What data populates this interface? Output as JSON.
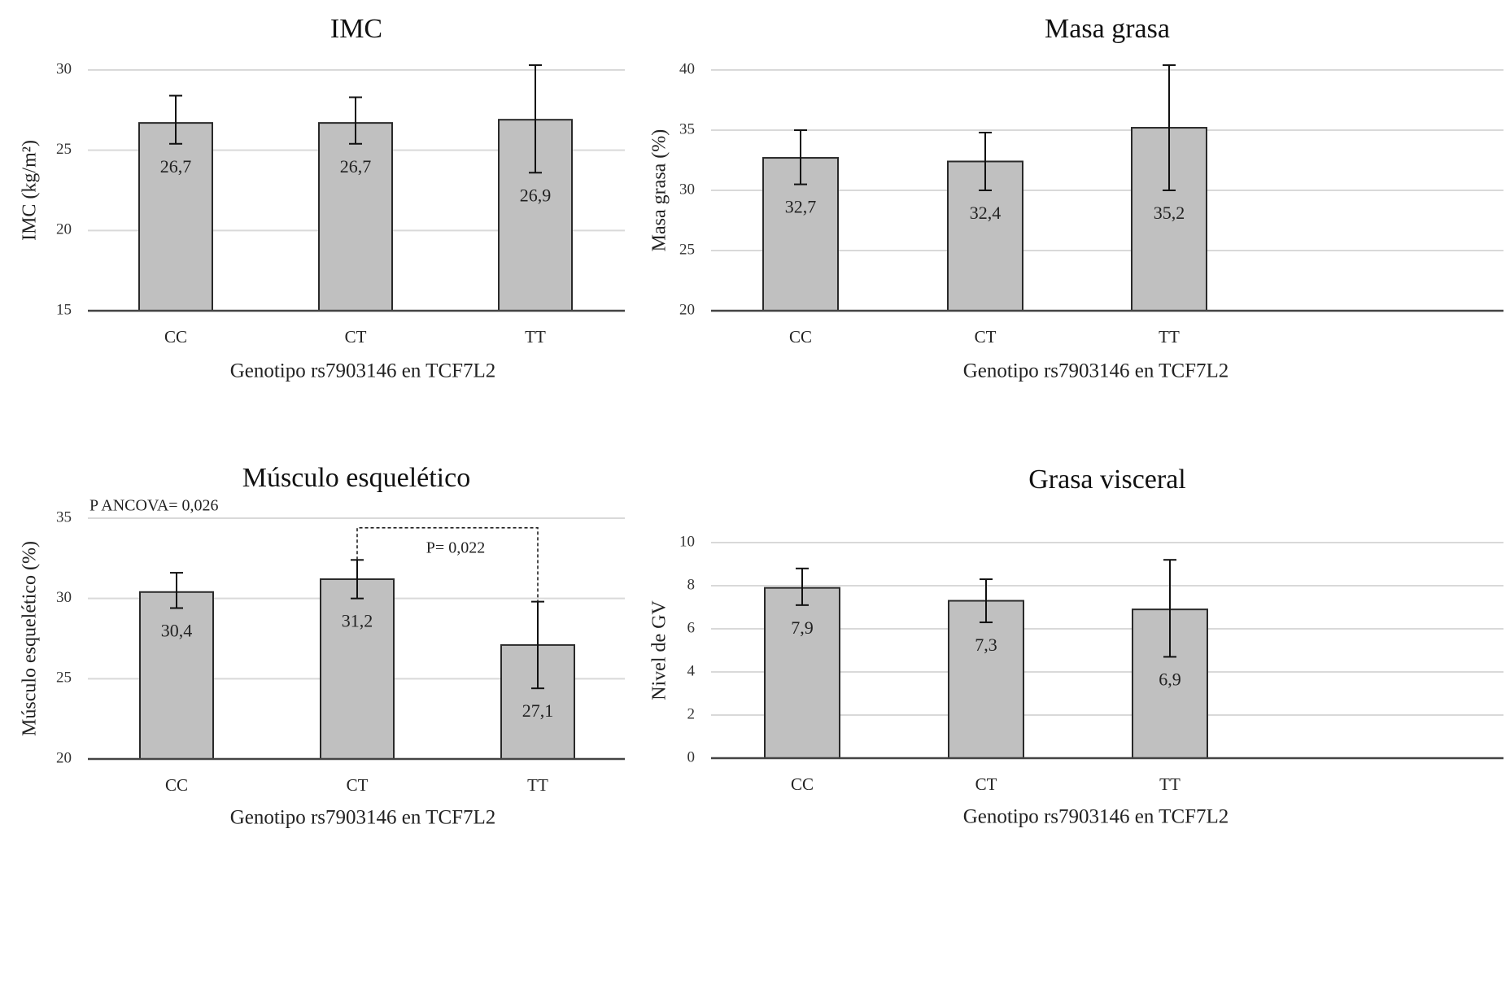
{
  "chart_data": [
    {
      "type": "bar",
      "title": "IMC",
      "xlabel": "Genotipo rs7903146 en TCF7L2",
      "ylabel": "IMC  (kg/m²)",
      "categories": [
        "CC",
        "CT",
        "TT"
      ],
      "values": [
        26.7,
        26.7,
        26.9
      ],
      "value_labels": [
        "26,7",
        "26,7",
        "26,9"
      ],
      "error_low": [
        25.4,
        25.4,
        23.6
      ],
      "error_high": [
        28.4,
        28.3,
        30.3
      ],
      "ylim": [
        15,
        30
      ],
      "yticks": [
        15,
        20,
        25,
        30
      ],
      "grid": true,
      "annotations": []
    },
    {
      "type": "bar",
      "title": "Masa grasa",
      "xlabel": "Genotipo rs7903146 en TCF7L2",
      "ylabel": "Masa grasa (%)",
      "categories": [
        "CC",
        "CT",
        "TT"
      ],
      "values": [
        32.7,
        32.4,
        35.2
      ],
      "value_labels": [
        "32,7",
        "32,4",
        "35,2"
      ],
      "error_low": [
        30.5,
        30.0,
        30.0
      ],
      "error_high": [
        35.0,
        34.8,
        40.4
      ],
      "ylim": [
        20,
        40
      ],
      "yticks": [
        20,
        25,
        30,
        35,
        40
      ],
      "grid": true,
      "annotations": []
    },
    {
      "type": "bar",
      "title": "Músculo esquelético",
      "xlabel": "Genotipo rs7903146 en TCF7L2",
      "ylabel": "Músculo esquelético (%)",
      "categories": [
        "CC",
        "CT",
        "TT"
      ],
      "values": [
        30.4,
        31.2,
        27.1
      ],
      "value_labels": [
        "30,4",
        "31,2",
        "27,1"
      ],
      "error_low": [
        29.4,
        30.0,
        24.4
      ],
      "error_high": [
        31.6,
        32.4,
        29.8
      ],
      "ylim": [
        20,
        35
      ],
      "yticks": [
        20,
        25,
        30,
        35
      ],
      "grid": true,
      "annotations": [
        {
          "text": "P ANCOVA= 0,026",
          "kind": "overall"
        },
        {
          "text": "P= 0,022",
          "kind": "bracket",
          "from": "CT",
          "to": "TT",
          "level": 34.4
        }
      ]
    },
    {
      "type": "bar",
      "title": "Grasa visceral",
      "xlabel": "Genotipo rs7903146 en TCF7L2",
      "ylabel": "Nivel de GV",
      "categories": [
        "CC",
        "CT",
        "TT"
      ],
      "values": [
        7.9,
        7.3,
        6.9
      ],
      "value_labels": [
        "7,9",
        "7,3",
        "6,9"
      ],
      "error_low": [
        7.1,
        6.3,
        4.7
      ],
      "error_high": [
        8.8,
        8.3,
        9.2
      ],
      "ylim": [
        0,
        10
      ],
      "yticks": [
        0,
        2,
        4,
        6,
        8,
        10
      ],
      "grid": true,
      "annotations": []
    }
  ],
  "colors": {
    "bar_fill": "#c0c0c0",
    "bar_stroke": "#2a2a2a",
    "grid": "#d9d9d9",
    "axis": "#444444",
    "text": "#222222"
  }
}
